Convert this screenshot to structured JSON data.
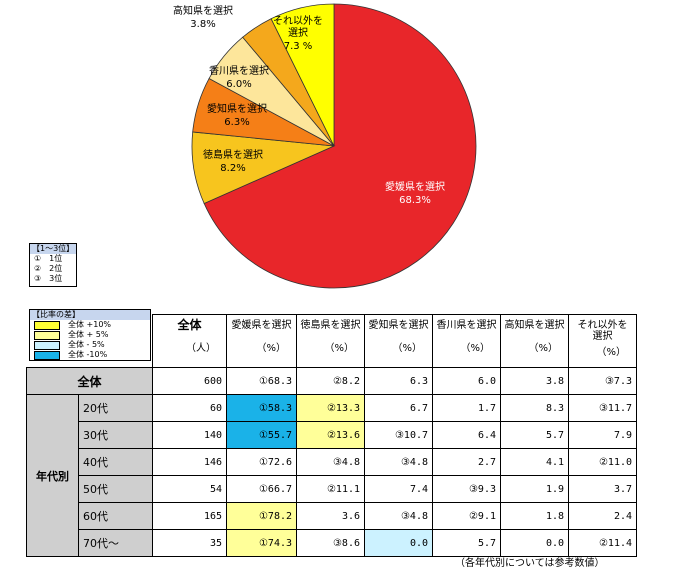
{
  "chart_data": {
    "type": "pie",
    "slices": [
      {
        "label": "愛媛県を選択",
        "value": 68.3,
        "display": "68.3%",
        "color": "#e8262a"
      },
      {
        "label": "徳島県を選択",
        "value": 8.2,
        "display": "8.2%",
        "color": "#f7c51e"
      },
      {
        "label": "愛知県を選択",
        "value": 6.3,
        "display": "6.3%",
        "color": "#f57f17"
      },
      {
        "label": "香川県を選択",
        "value": 6.0,
        "display": "6.0%",
        "color": "#fde69b"
      },
      {
        "label": "高知県を選択",
        "value": 3.8,
        "display": "3.8%",
        "color": "#f4a81c"
      },
      {
        "label": "それ以外を選択",
        "value": 7.3,
        "display": "7.3 %",
        "color": "#ffff00"
      }
    ]
  },
  "legend_rank": {
    "title": "【1～3位】",
    "items": [
      "①　1位",
      "②　2位",
      "③　3位"
    ]
  },
  "legend_diff": {
    "title": "【比率の差】",
    "items": [
      {
        "label": "全体 +10%",
        "color": "#ffff33"
      },
      {
        "label": "全体 + 5%",
        "color": "#ffff99"
      },
      {
        "label": "全体 - 5%",
        "color": "#ccf2ff"
      },
      {
        "label": "全体 -10%",
        "color": "#1ab2e8"
      }
    ]
  },
  "table": {
    "total_header": "全体",
    "total_unit": "（人）",
    "pct_unit": "（%）",
    "columns": [
      "愛媛県を選択",
      "徳島県を選択",
      "愛知県を選択",
      "香川県を選択",
      "高知県を選択",
      "それ以外を\n選択"
    ],
    "overall": {
      "label": "全体",
      "n": "600",
      "values": [
        "①68.3",
        "②8.2",
        "6.3",
        "6.0",
        "3.8",
        "③7.3"
      ]
    },
    "group_label": "年代別",
    "rows": [
      {
        "label": "20代",
        "n": "60",
        "values": [
          "①58.3",
          "②13.3",
          "6.7",
          "1.7",
          "8.3",
          "③11.7"
        ],
        "hl": [
          "-10",
          "+5",
          "",
          "",
          "",
          ""
        ]
      },
      {
        "label": "30代",
        "n": "140",
        "values": [
          "①55.7",
          "②13.6",
          "③10.7",
          "6.4",
          "5.7",
          "7.9"
        ],
        "hl": [
          "-10",
          "+5",
          "",
          "",
          "",
          ""
        ]
      },
      {
        "label": "40代",
        "n": "146",
        "values": [
          "①72.6",
          "③4.8",
          "③4.8",
          "2.7",
          "4.1",
          "②11.0"
        ],
        "hl": [
          "",
          "",
          "",
          "",
          "",
          ""
        ]
      },
      {
        "label": "50代",
        "n": "54",
        "values": [
          "①66.7",
          "②11.1",
          "7.4",
          "③9.3",
          "1.9",
          "3.7"
        ],
        "hl": [
          "",
          "",
          "",
          "",
          "",
          ""
        ]
      },
      {
        "label": "60代",
        "n": "165",
        "values": [
          "①78.2",
          "3.6",
          "③4.8",
          "②9.1",
          "1.8",
          "2.4"
        ],
        "hl": [
          "+5",
          "",
          "",
          "",
          "",
          ""
        ]
      },
      {
        "label": "70代～",
        "n": "35",
        "values": [
          "①74.3",
          "③8.6",
          "0.0",
          "5.7",
          "0.0",
          "②11.4"
        ],
        "hl": [
          "+5",
          "",
          "-5",
          "",
          "",
          ""
        ]
      }
    ]
  },
  "note": "（各年代別については参考数値）"
}
